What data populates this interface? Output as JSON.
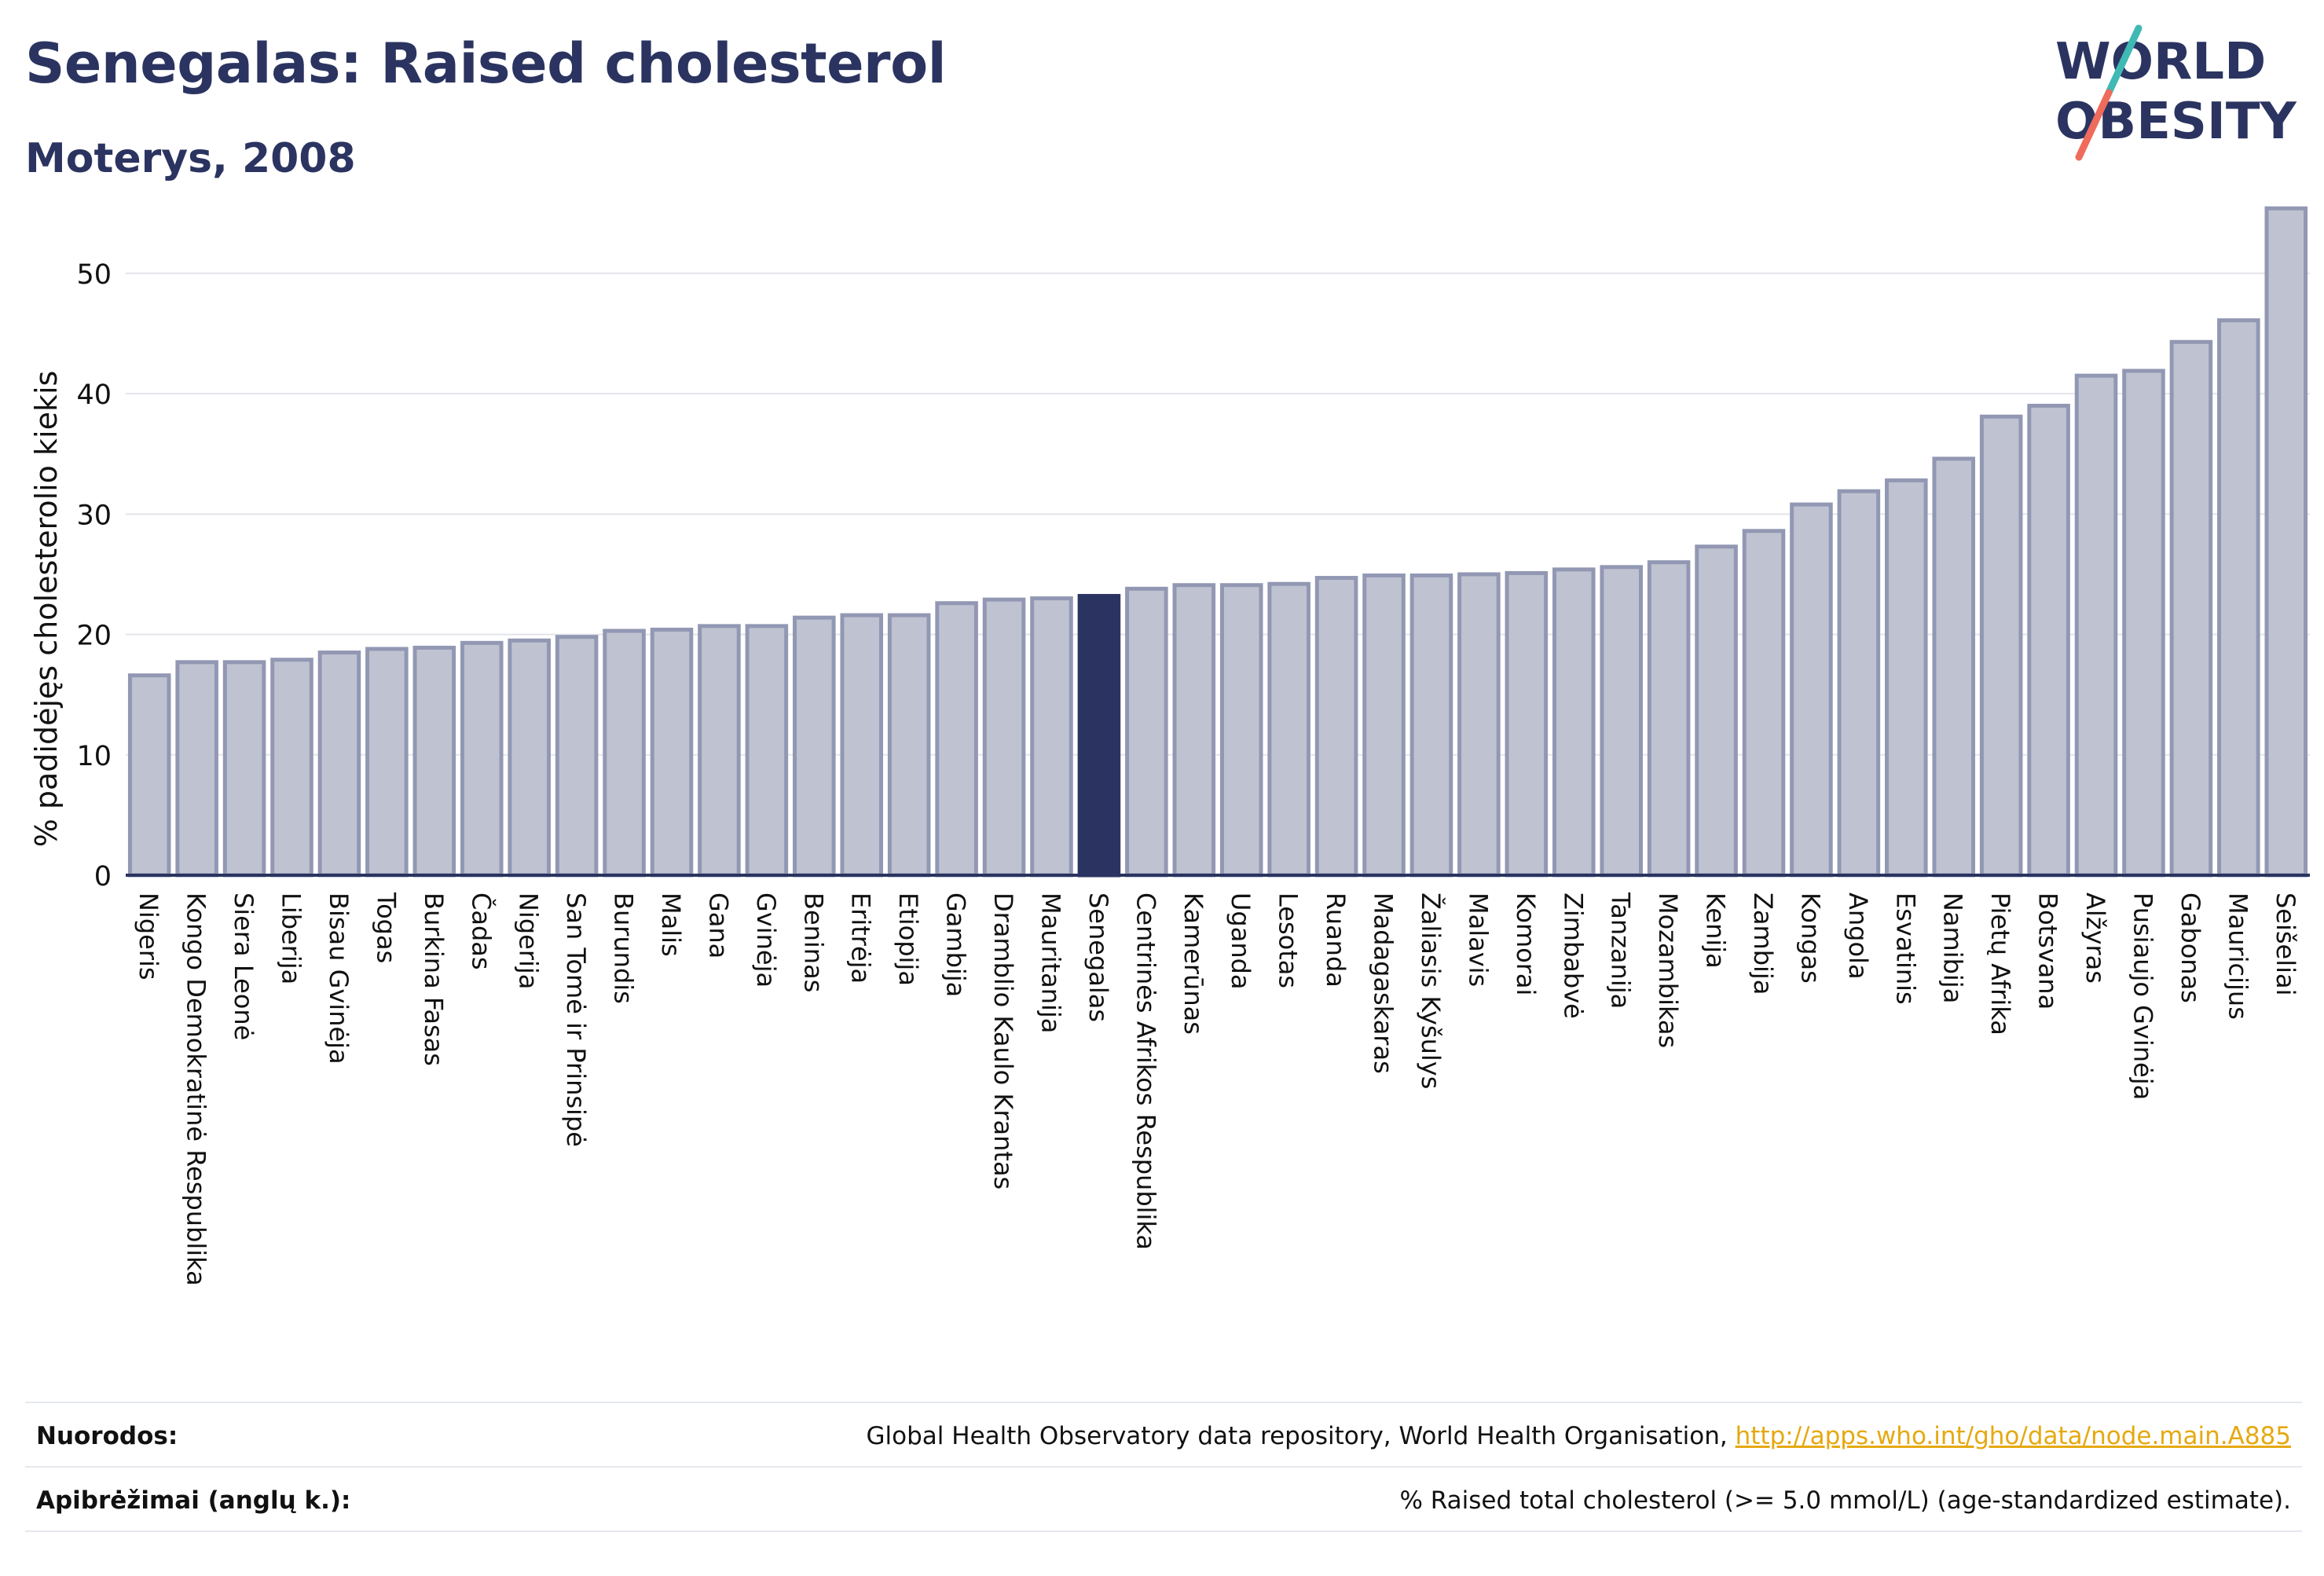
{
  "header": {
    "title": "Senegalas: Raised cholesterol",
    "subtitle": "Moterys, 2008"
  },
  "logo": {
    "line1": "WORLD",
    "line2": "OBESITY",
    "colors": {
      "text": "#2b3460",
      "slash_teal": "#3fb9b4",
      "slash_coral": "#ef6b5c"
    }
  },
  "colors": {
    "bar": "#bfc3d1",
    "bar_border": "#9298b3",
    "highlight": "#2b3460",
    "grid": "#e3e5ea",
    "axis": "#2b3460"
  },
  "chart_data": {
    "type": "bar",
    "title": "Senegalas: Raised cholesterol",
    "subtitle": "Moterys, 2008",
    "xlabel": "",
    "ylabel": "% padidėjęs cholesterolio kiekis",
    "ylim": [
      0,
      56
    ],
    "yticks": [
      0,
      10,
      20,
      30,
      40,
      50
    ],
    "grid": true,
    "highlight": "Senegalas",
    "categories": [
      "Nigeris",
      "Kongo Demokratinė Respublika",
      "Siera Leonė",
      "Liberija",
      "Bisau Gvinėja",
      "Togas",
      "Burkina Fasas",
      "Čadas",
      "Nigerija",
      "San Tomė ir Prinsipė",
      "Burundis",
      "Malis",
      "Gana",
      "Gvinėja",
      "Beninas",
      "Eritrėja",
      "Etiopija",
      "Gambija",
      "Dramblio Kaulo Krantas",
      "Mauritanija",
      "Senegalas",
      "Centrinės Afrikos Respublika",
      "Kamerūnas",
      "Uganda",
      "Lesotas",
      "Ruanda",
      "Madagaskaras",
      "Žaliasis Kyšulys",
      "Malavis",
      "Komorai",
      "Zimbabvė",
      "Tanzanija",
      "Mozambikas",
      "Kenija",
      "Zambija",
      "Kongas",
      "Angola",
      "Esvatinis",
      "Namibija",
      "Pietų Afrika",
      "Botsvana",
      "Alžyras",
      "Pusiaujo Gvinėja",
      "Gabonas",
      "Mauricijus",
      "Seišeliai"
    ],
    "values": [
      16.6,
      17.7,
      17.7,
      17.9,
      18.5,
      18.8,
      18.9,
      19.3,
      19.5,
      19.8,
      20.3,
      20.4,
      20.7,
      20.7,
      21.4,
      21.6,
      21.6,
      22.6,
      22.9,
      23.0,
      23.2,
      23.8,
      24.1,
      24.1,
      24.2,
      24.7,
      24.9,
      24.9,
      25.0,
      25.1,
      25.4,
      25.6,
      26.0,
      27.3,
      28.6,
      30.8,
      31.9,
      32.8,
      34.6,
      38.1,
      39.0,
      41.5,
      41.9,
      44.3,
      46.1,
      55.4
    ]
  },
  "footer": {
    "references_label": "Nuorodos:",
    "references_text": "Global Health Observatory data repository, World Health Organisation, ",
    "references_link": "http://apps.who.int/gho/data/node.main.A885",
    "definitions_label": "Apibrėžimai (anglų k.):",
    "definitions_text": "% Raised total cholesterol (>= 5.0 mmol/L) (age-standardized estimate)."
  }
}
